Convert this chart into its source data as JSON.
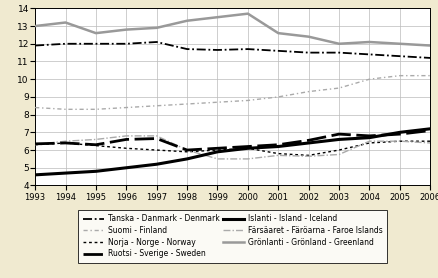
{
  "years": [
    1993,
    1994,
    1995,
    1996,
    1997,
    1998,
    1999,
    2000,
    2001,
    2002,
    2003,
    2004,
    2005,
    2006
  ],
  "denmark": [
    11.9,
    12.0,
    12.0,
    12.0,
    12.1,
    11.7,
    11.65,
    11.7,
    11.6,
    11.5,
    11.5,
    11.4,
    11.3,
    11.2
  ],
  "norway": [
    6.3,
    6.4,
    6.25,
    6.1,
    6.0,
    5.9,
    6.0,
    6.1,
    5.8,
    5.7,
    6.0,
    6.4,
    6.5,
    6.5
  ],
  "iceland": [
    4.6,
    4.7,
    4.8,
    5.0,
    5.2,
    5.5,
    5.9,
    6.1,
    6.2,
    6.4,
    6.6,
    6.7,
    7.0,
    7.2
  ],
  "greenland": [
    13.0,
    13.2,
    12.6,
    12.8,
    12.9,
    13.3,
    13.5,
    13.7,
    12.6,
    12.4,
    12.0,
    12.1,
    12.0,
    11.9
  ],
  "finland": [
    8.4,
    8.3,
    8.3,
    8.4,
    8.5,
    8.6,
    8.7,
    8.8,
    9.0,
    9.3,
    9.5,
    10.0,
    10.2,
    10.2
  ],
  "sweden": [
    6.35,
    6.4,
    6.3,
    6.6,
    6.65,
    6.0,
    6.1,
    6.2,
    6.3,
    6.55,
    6.9,
    6.8,
    6.9,
    7.1
  ],
  "faroe": [
    6.3,
    6.5,
    6.6,
    6.8,
    6.8,
    6.0,
    5.5,
    5.5,
    5.7,
    5.65,
    5.75,
    6.5,
    6.5,
    6.4
  ],
  "ylim": [
    4,
    14
  ],
  "yticks": [
    4,
    5,
    6,
    7,
    8,
    9,
    10,
    11,
    12,
    13,
    14
  ],
  "background_color": "#f0ead0",
  "plot_bg": "#ffffff",
  "legend_labels": {
    "denmark": "Tanska - Danmark - Denmark",
    "norway": "Norja - Norge - Norway",
    "iceland": "Islanti - Island - Iceland",
    "greenland": "Grönlanti - Grönland - Greenland",
    "finland": "Suomi - Finland",
    "sweden": "Ruotsi - Sverige - Sweden",
    "faroe": "Färsäaret - Färöarna - Faroe Islands"
  }
}
